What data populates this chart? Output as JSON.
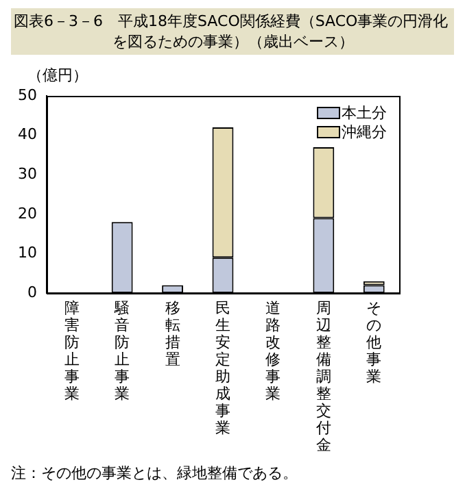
{
  "chart_data": {
    "type": "bar",
    "title": "図表6－3－6　平成18年度SACO関係経費（SACO事業の円滑化を図るための事業）（歳出ベース）",
    "ylabel": "（億円）",
    "categories": [
      "障害防止事業",
      "騒音防止事業",
      "移転措置",
      "民生安定助成事業",
      "道路改修事業",
      "周辺整備調整交付金",
      "その他事業"
    ],
    "series": [
      {
        "name": "本土分",
        "color": "#c0c8dc",
        "values": [
          0,
          18,
          2,
          9,
          0,
          19,
          2
        ]
      },
      {
        "name": "沖縄分",
        "color": "#e6dcb4",
        "values": [
          0,
          0,
          0,
          33,
          0,
          18,
          1
        ]
      }
    ],
    "stacked": true,
    "ylim": [
      0,
      50
    ],
    "yticks": [
      0,
      10,
      20,
      30,
      40,
      50
    ],
    "grid": false,
    "legend": "top right",
    "annotations": [
      "注：その他の事業とは、緑地整備である。"
    ]
  }
}
